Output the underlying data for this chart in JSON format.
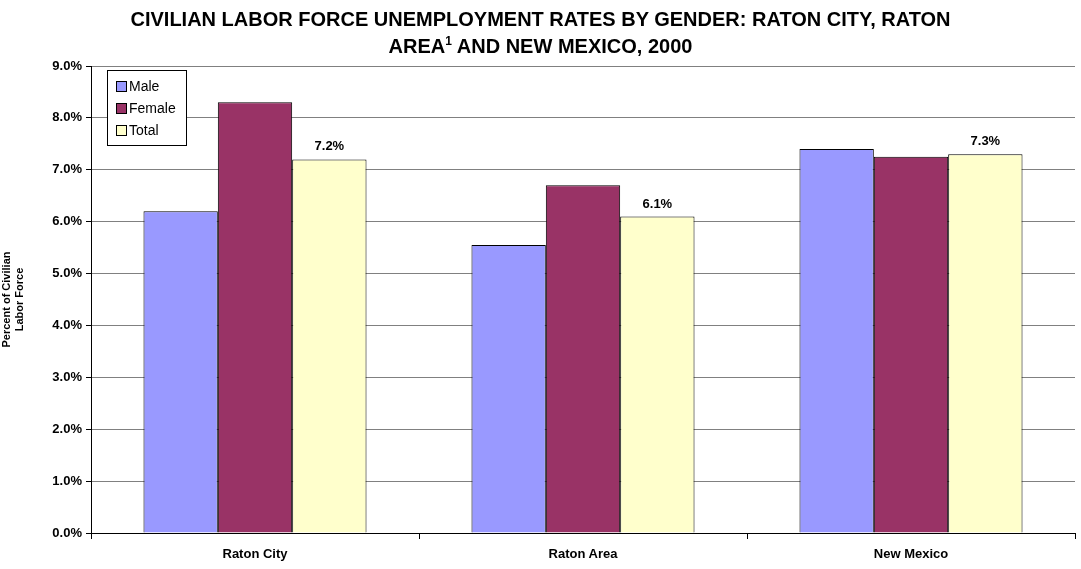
{
  "chart_data": {
    "type": "bar",
    "title": "CIVILIAN LABOR FORCE UNEMPLOYMENT RATES BY GENDER: RATON CITY, RATON AREA$^{1}$ AND NEW MEXICO, 2000",
    "ylabel": "Percent of Civilian Labor Force",
    "categories": [
      "Raton City",
      "Raton Area",
      "New Mexico"
    ],
    "series": [
      {
        "name": "Male",
        "color": "#9999ff",
        "values": [
          6.2,
          5.55,
          7.4
        ]
      },
      {
        "name": "Female",
        "color": "#993366",
        "values": [
          8.3,
          6.7,
          7.25
        ]
      },
      {
        "name": "Total",
        "color": "#ffffcc",
        "values": [
          7.2,
          6.1,
          7.3
        ],
        "value_labels": [
          "7.2%",
          "6.1%",
          "7.3%"
        ]
      }
    ],
    "ylim": [
      0,
      9
    ],
    "yticks": [
      {
        "value": 0,
        "label": "0.0%"
      },
      {
        "value": 1,
        "label": "1.0%"
      },
      {
        "value": 2,
        "label": "2.0%"
      },
      {
        "value": 3,
        "label": "3.0%"
      },
      {
        "value": 4,
        "label": "4.0%"
      },
      {
        "value": 5,
        "label": "5.0%"
      },
      {
        "value": 6,
        "label": "6.0%"
      },
      {
        "value": 7,
        "label": "7.0%"
      },
      {
        "value": 8,
        "label": "8.0%"
      },
      {
        "value": 9,
        "label": "9.0%"
      }
    ],
    "grid": "y",
    "legend": "top left"
  }
}
